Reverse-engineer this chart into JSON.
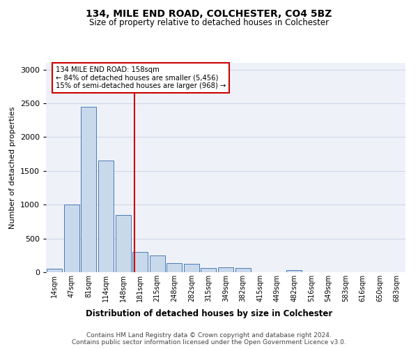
{
  "title1": "134, MILE END ROAD, COLCHESTER, CO4 5BZ",
  "title2": "Size of property relative to detached houses in Colchester",
  "xlabel": "Distribution of detached houses by size in Colchester",
  "ylabel": "Number of detached properties",
  "footer1": "Contains HM Land Registry data © Crown copyright and database right 2024.",
  "footer2": "Contains public sector information licensed under the Open Government Licence v3.0.",
  "annotation_line1": "134 MILE END ROAD: 158sqm",
  "annotation_line2": "← 84% of detached houses are smaller (5,456)",
  "annotation_line3": "15% of semi-detached houses are larger (968) →",
  "bin_labels": [
    "14sqm",
    "47sqm",
    "81sqm",
    "114sqm",
    "148sqm",
    "181sqm",
    "215sqm",
    "248sqm",
    "282sqm",
    "315sqm",
    "349sqm",
    "382sqm",
    "415sqm",
    "449sqm",
    "482sqm",
    "516sqm",
    "549sqm",
    "583sqm",
    "616sqm",
    "650sqm",
    "683sqm"
  ],
  "bar_values": [
    50,
    1000,
    2450,
    1650,
    850,
    300,
    250,
    130,
    120,
    60,
    70,
    60,
    5,
    0,
    30,
    5,
    0,
    0,
    0,
    0,
    0
  ],
  "bar_color": "#c9d9ec",
  "bar_edge_color": "#4a7ab5",
  "grid_color": "#d0d8e8",
  "background_color": "#eef2f8",
  "red_line_x": 4.67,
  "red_line_color": "#cc0000",
  "annotation_box_color": "#cc0000",
  "ylim": [
    0,
    3100
  ],
  "yticks": [
    0,
    500,
    1000,
    1500,
    2000,
    2500,
    3000
  ]
}
